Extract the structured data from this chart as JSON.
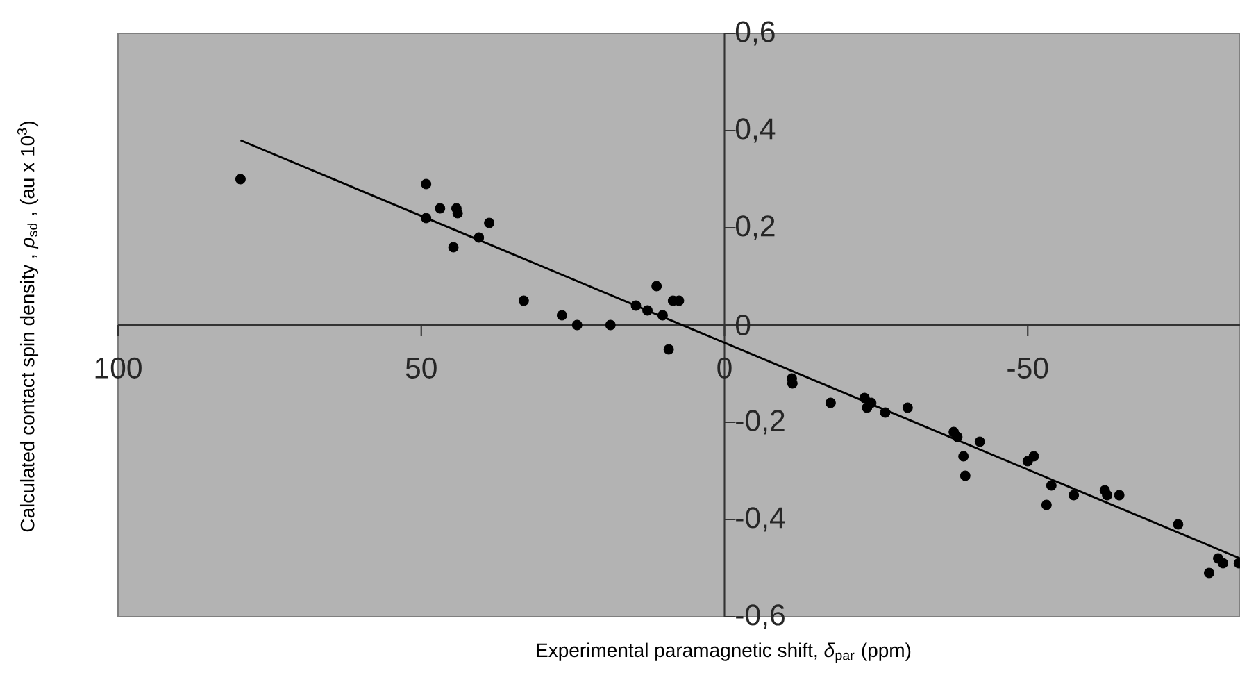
{
  "chart_data": {
    "type": "scatter",
    "xlabel": "Experimental paramagnetic shift, *δ*$_{par}$ (ppm)",
    "ylabel": "Calculated contact spin density , *ρ*$_{sd}$ , (au x 10$^{3}$)",
    "xlim": [
      100,
      -85
    ],
    "ylim": [
      -0.6,
      0.6
    ],
    "xticks": [
      100,
      50,
      0,
      -50
    ],
    "yticks": [
      {
        "value": -0.6,
        "label": "-0,6"
      },
      {
        "value": -0.4,
        "label": "-0,4"
      },
      {
        "value": -0.2,
        "label": "-0,2"
      },
      0,
      {
        "value": 0.2,
        "label": "0,2"
      },
      {
        "value": 0.4,
        "label": "0,4"
      },
      {
        "value": 0.6,
        "label": "0,6"
      }
    ],
    "grid": false,
    "series": [
      {
        "marker": "circle",
        "color": "#000000",
        "x": [
          79.8,
          49.2,
          49.2,
          46.9,
          44.2,
          44.0,
          44.7,
          40.5,
          38.8,
          33.1,
          26.8,
          24.3,
          18.8,
          14.6,
          12.7,
          11.2,
          10.2,
          9.2,
          8.5,
          7.5,
          -11.1,
          -11.2,
          -17.5,
          -23.1,
          -23.5,
          -24.2,
          -26.5,
          -30.2,
          -37.8,
          -38.4,
          -39.4,
          -39.7,
          -42.1,
          -50.0,
          -51.0,
          -53.9,
          -53.1,
          -57.6,
          -62.7,
          -63.1,
          -65.1,
          -74.8,
          -79.9,
          -81.4,
          -82.2,
          -84.8
        ],
        "values": [
          0.3,
          0.29,
          0.22,
          0.24,
          0.24,
          0.23,
          0.16,
          0.18,
          0.21,
          0.05,
          0.02,
          0.0,
          0.0,
          0.04,
          0.03,
          0.08,
          0.02,
          -0.05,
          0.05,
          0.05,
          -0.11,
          -0.12,
          -0.16,
          -0.15,
          -0.17,
          -0.16,
          -0.18,
          -0.17,
          -0.22,
          -0.23,
          -0.27,
          -0.31,
          -0.24,
          -0.28,
          -0.27,
          -0.33,
          -0.37,
          -0.35,
          -0.34,
          -0.35,
          -0.35,
          -0.41,
          -0.51,
          -0.48,
          -0.49,
          -0.49
        ]
      },
      {
        "type": "line",
        "marker": "none",
        "line_style": "solid",
        "color": "#000000",
        "x": [
          79.8,
          -85
        ],
        "values": [
          0.38,
          -0.48
        ]
      }
    ]
  }
}
